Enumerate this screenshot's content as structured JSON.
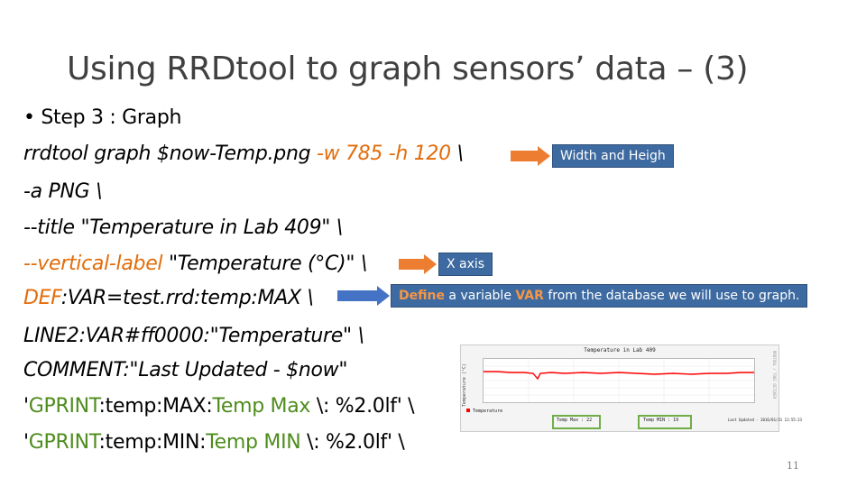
{
  "title": "Using RRDtool to graph sensors’ data – (3)",
  "lines": {
    "step": "• Step 3 : Graph",
    "l1a": "rrdtool graph $now-Temp.png ",
    "l1b": "-w 785 -h 120",
    "l1c": " \\",
    "l2": "-a PNG \\",
    "l3": "--title \"Temperature in Lab 409\" \\",
    "l4a": "--vertical-label",
    "l4b": " \"Temperature (°C)\" \\",
    "l5": "DEF:VAR=test.rrd:temp:MAX \\",
    "l6": "LINE2:VAR#ff0000:\"Temperature\" \\",
    "l7": "COMMENT:\"Last Updated - $now\"",
    "l8a": "'",
    "l8b": "GPRINT",
    "l8c": ":temp:MAX:",
    "l8d": "Temp Max",
    "l8e": " \\: %2.0lf' \\",
    "l9a": "'",
    "l9b": "GPRINT",
    "l9c": ":temp:MIN:",
    "l9d": "Temp MIN",
    "l9e": " \\: %2.0lf' \\"
  },
  "callouts": {
    "width_height": "Width and Heigh",
    "x_axis": "X axis",
    "define_a": "Define",
    "define_b": " a variable ",
    "define_c": "VAR",
    "define_d": " from the database we will use to graph."
  },
  "graph": {
    "title": "Temperature in Lab 409",
    "ylabel": "Temperature (°C)",
    "side": "RRDTOOL / TOBI OETIKER",
    "legend_series": "Temperature",
    "temp_max": "Temp Max : 22",
    "temp_min": "Temp MIN : 19",
    "last_updated": "Last Updated - 2016/01/31 11:55:23",
    "yticks": [
      "22",
      "20",
      "18",
      "16",
      "14",
      "12",
      "10"
    ],
    "xticks": [
      "12:00",
      "16:00",
      "20:00",
      "00:00",
      "04:00",
      "08:00"
    ],
    "line_color": "#ff0000"
  },
  "colors": {
    "accent_orange": "#e36c09",
    "accent_green": "#4e8c1c",
    "callout_blue": "#3d6aa0",
    "arrow_orange": "#ed7d31",
    "arrow_blue": "#4472c4",
    "box_green": "#70ad47"
  },
  "page_number": "11"
}
